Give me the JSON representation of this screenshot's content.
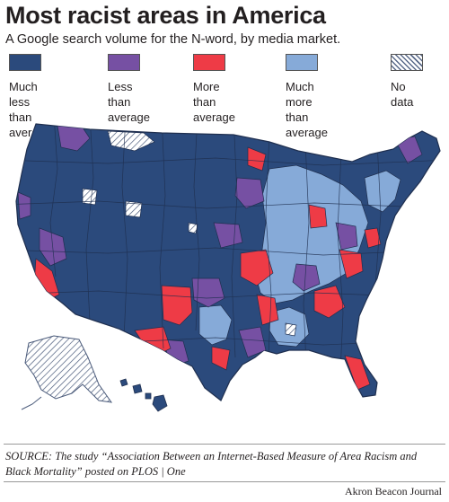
{
  "header": {
    "title": "Most racist areas in America",
    "subtitle": "A Google search volume for the N-word, by media market."
  },
  "legend": [
    {
      "label": "Much less\nthan average",
      "color": "#2b4a7c",
      "hatched": false
    },
    {
      "label": "Less than\naverage",
      "color": "#7650a3",
      "hatched": false
    },
    {
      "label": "More than\naverage",
      "color": "#ee3b46",
      "hatched": false
    },
    {
      "label": "Much more\nthan average",
      "color": "#86aad8",
      "hatched": false
    },
    {
      "label": "No data",
      "color": "#ffffff",
      "hatched": true
    }
  ],
  "map": {
    "subject": "Contiguous United States plus Alaska and Hawaii, divided into media markets",
    "border_color": "#1f2f4f"
  },
  "footer": {
    "source": "SOURCE: The study “Association Between an Internet-Based Measure of Area Racism and Black Mortality” posted on PLOS | One",
    "credit": "Akron Beacon Journal"
  }
}
